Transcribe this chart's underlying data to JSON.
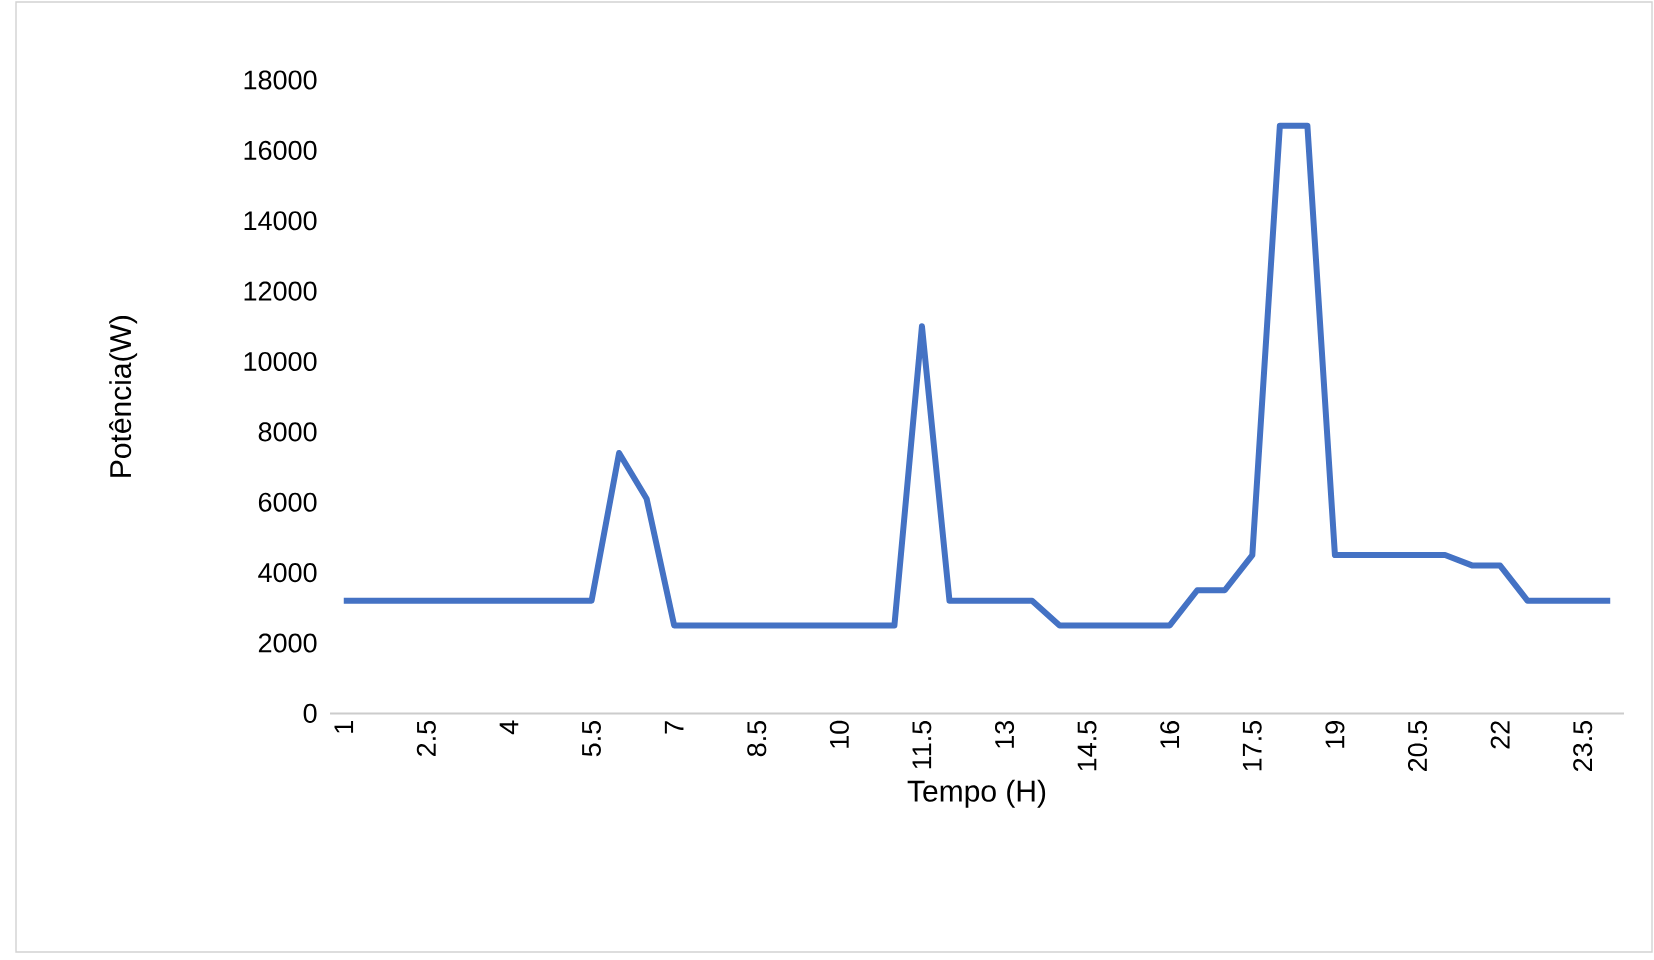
{
  "chart_data": {
    "type": "line",
    "xlabel": "Tempo (H)",
    "ylabel": "Potência(W)",
    "categories": [
      "1",
      null,
      null,
      "2.5",
      null,
      null,
      "4",
      null,
      null,
      "5.5",
      null,
      null,
      "7",
      null,
      null,
      "8.5",
      null,
      null,
      "10",
      null,
      null,
      "11.5",
      null,
      null,
      "13",
      null,
      null,
      "14.5",
      null,
      null,
      "16",
      null,
      null,
      "17.5",
      null,
      null,
      "19",
      null,
      null,
      "20.5",
      null,
      null,
      "22",
      null,
      null,
      "23.5",
      null
    ],
    "values": [
      3200,
      3200,
      3200,
      3200,
      3200,
      3200,
      3200,
      3200,
      3200,
      3200,
      7400,
      6100,
      2500,
      2500,
      2500,
      2500,
      2500,
      2500,
      2500,
      2500,
      2500,
      11000,
      3200,
      3200,
      3200,
      3200,
      2500,
      2500,
      2500,
      2500,
      2500,
      3500,
      3500,
      4500,
      16700,
      16700,
      4500,
      4500,
      4500,
      4500,
      4500,
      4200,
      4200,
      3200,
      3200,
      3200,
      3200
    ],
    "color": "#4472c4",
    "ylim": [
      0,
      18000
    ],
    "yticks": [
      0,
      2000,
      4000,
      6000,
      8000,
      10000,
      12000,
      14000,
      16000,
      18000
    ],
    "grid": false,
    "marker": "none",
    "line_style": "solid"
  }
}
